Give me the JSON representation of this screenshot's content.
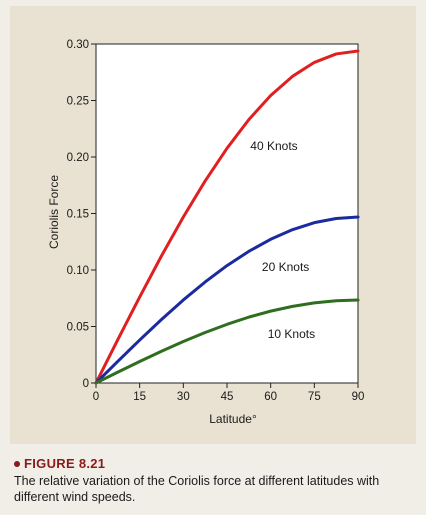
{
  "figure": {
    "number": "FIGURE 8.21",
    "caption": "The relative variation of the Coriolis force at different latitudes with different wind speeds."
  },
  "colors": {
    "accent": "#8a1a1a",
    "background": "#e9e2d2"
  },
  "chart_data": {
    "type": "line",
    "xlabel": "Latitude°",
    "ylabel": "Coriolis Force",
    "xlim": [
      0,
      90
    ],
    "ylim": [
      0,
      0.3
    ],
    "x_ticks": [
      "0",
      "15",
      "30",
      "45",
      "60",
      "75",
      "90"
    ],
    "y_ticks": [
      "0",
      "0.05",
      "0.10",
      "0.15",
      "0.20",
      "0.25",
      "0.30"
    ],
    "grid": false,
    "x": [
      0,
      7.5,
      15,
      22.5,
      30,
      37.5,
      45,
      52.5,
      60,
      67.5,
      75,
      82.5,
      90
    ],
    "series": [
      {
        "name": "40 Knots",
        "color": "#e02020",
        "values": [
          0,
          0.0384,
          0.0761,
          0.1125,
          0.1469,
          0.1788,
          0.2077,
          0.2331,
          0.2544,
          0.2714,
          0.2837,
          0.2912,
          0.2938
        ]
      },
      {
        "name": "20 Knots",
        "color": "#1c2aa0",
        "values": [
          0,
          0.0192,
          0.038,
          0.0562,
          0.0735,
          0.0894,
          0.1039,
          0.1165,
          0.1272,
          0.1357,
          0.1419,
          0.1456,
          0.1469
        ]
      },
      {
        "name": "10 Knots",
        "color": "#2e6e1e",
        "values": [
          0,
          0.0096,
          0.019,
          0.0281,
          0.0367,
          0.0447,
          0.0519,
          0.0583,
          0.0636,
          0.0678,
          0.0709,
          0.0728,
          0.0734
        ]
      }
    ]
  }
}
